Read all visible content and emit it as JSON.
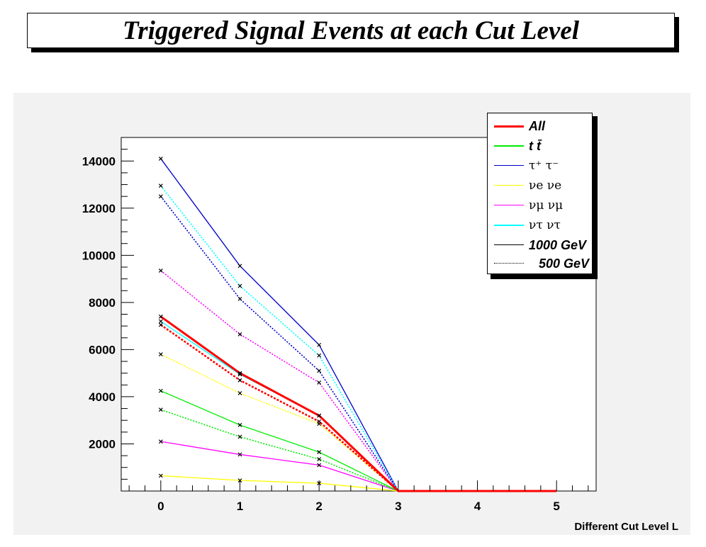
{
  "title": "Triggered Signal Events at each Cut Level",
  "chart_data": {
    "type": "line",
    "xlabel": "Different Cut Level L",
    "ylabel": "",
    "xlim": [
      -0.5,
      5.5
    ],
    "ylim": [
      0,
      15000
    ],
    "x_ticks": [
      "0",
      "1",
      "2",
      "3",
      "4",
      "5"
    ],
    "y_ticks": [
      "2000",
      "4000",
      "6000",
      "8000",
      "10000",
      "12000",
      "14000"
    ],
    "grid": false,
    "legend_position": "top-right",
    "legend": [
      {
        "id": "all",
        "label": "All",
        "color": "#ff0000"
      },
      {
        "id": "tt",
        "label": "t t̄",
        "color": "#00ee00"
      },
      {
        "id": "tautau",
        "label": "τ⁺ τ⁻",
        "color": "#0000cc"
      },
      {
        "id": "nue",
        "label": "νe νe",
        "color": "#ffff00"
      },
      {
        "id": "numu",
        "label": "νμ νμ",
        "color": "#ff00ff"
      },
      {
        "id": "nutau",
        "label": "ντ ντ",
        "color": "#00ffff"
      },
      {
        "id": "m1000",
        "label": "1000 GeV",
        "color": "#000000",
        "style": "solid"
      },
      {
        "id": "m500",
        "label": "500 GeV",
        "color": "#000000",
        "style": "dotted"
      }
    ],
    "series": [
      {
        "process": "tautau",
        "mass": "1000 GeV",
        "color": "#0000cc",
        "style": "solid",
        "x": [
          0,
          1,
          2,
          3,
          4,
          5
        ],
        "values": [
          14100,
          9550,
          6200,
          0,
          0,
          0
        ]
      },
      {
        "process": "tautau",
        "mass": "500 GeV",
        "color": "#0000cc",
        "style": "dotted",
        "x": [
          0,
          1,
          2,
          3,
          4,
          5
        ],
        "values": [
          12500,
          8150,
          5100,
          0,
          0,
          0
        ]
      },
      {
        "process": "nutau",
        "mass": "1000 GeV",
        "color": "#00ffff",
        "style": "solid",
        "x": [
          0,
          1,
          2,
          3,
          4,
          5
        ],
        "values": [
          7200,
          4950,
          3200,
          0,
          0,
          0
        ]
      },
      {
        "process": "nutau",
        "mass": "500 GeV",
        "color": "#00ffff",
        "style": "dotted",
        "x": [
          0,
          1,
          2,
          3,
          4,
          5
        ],
        "values": [
          12950,
          8700,
          5750,
          0,
          0,
          0
        ]
      },
      {
        "process": "numu",
        "mass": "1000 GeV",
        "color": "#ff00ff",
        "style": "solid",
        "x": [
          0,
          1,
          2,
          3,
          4,
          5
        ],
        "values": [
          2100,
          1550,
          1100,
          0,
          0,
          0
        ]
      },
      {
        "process": "numu",
        "mass": "500 GeV",
        "color": "#ff00ff",
        "style": "dotted",
        "x": [
          0,
          1,
          2,
          3,
          4,
          5
        ],
        "values": [
          9350,
          6650,
          4600,
          0,
          0,
          0
        ]
      },
      {
        "process": "nue",
        "mass": "1000 GeV",
        "color": "#ffff00",
        "style": "solid",
        "x": [
          0,
          1,
          2,
          3,
          4,
          5
        ],
        "values": [
          650,
          450,
          330,
          0,
          0,
          0
        ]
      },
      {
        "process": "nue",
        "mass": "500 GeV",
        "color": "#ffff00",
        "style": "dotted",
        "x": [
          0,
          1,
          2,
          3,
          4,
          5
        ],
        "values": [
          5800,
          4150,
          2850,
          0,
          0,
          0
        ]
      },
      {
        "process": "tt",
        "mass": "1000 GeV",
        "color": "#00ee00",
        "style": "solid",
        "x": [
          0,
          1,
          2,
          3,
          4,
          5
        ],
        "values": [
          4250,
          2800,
          1650,
          0,
          0,
          0
        ]
      },
      {
        "process": "tt",
        "mass": "500 GeV",
        "color": "#00ee00",
        "style": "dotted",
        "x": [
          0,
          1,
          2,
          3,
          4,
          5
        ],
        "values": [
          3450,
          2300,
          1350,
          0,
          0,
          0
        ]
      },
      {
        "process": "all",
        "mass": "1000 GeV",
        "color": "#ff0000",
        "style": "solid",
        "x": [
          0,
          1,
          2,
          3,
          4,
          5
        ],
        "values": [
          7400,
          5000,
          3200,
          0,
          0,
          0
        ]
      },
      {
        "process": "all",
        "mass": "500 GeV",
        "color": "#ff0000",
        "style": "dotted",
        "x": [
          0,
          1,
          2,
          3,
          4,
          5
        ],
        "values": [
          7050,
          4700,
          2950,
          0,
          0,
          0
        ]
      }
    ]
  }
}
